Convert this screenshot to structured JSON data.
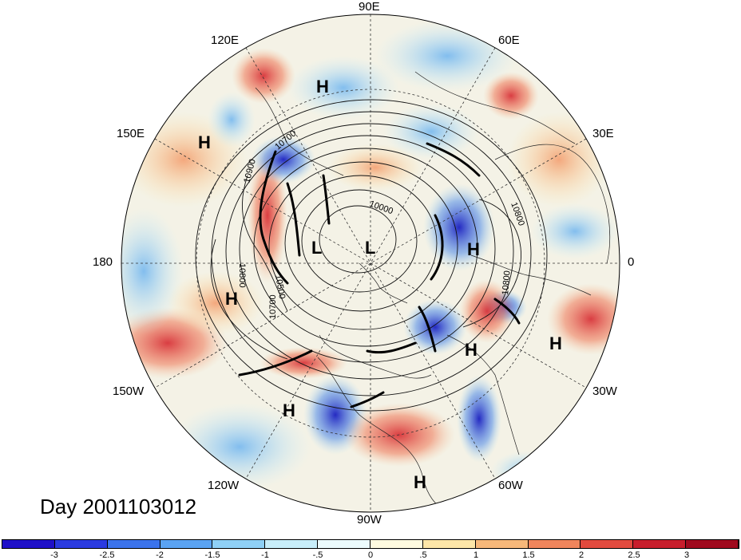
{
  "map": {
    "projection": "north-polar-stereographic",
    "longitude_labels": [
      "90E",
      "60E",
      "30E",
      "0",
      "30W",
      "60W",
      "90W",
      "120W",
      "150W",
      "180",
      "150E",
      "120E"
    ],
    "pressure_labels": [
      "H",
      "H",
      "H",
      "H",
      "H",
      "H",
      "H",
      "H",
      "L",
      "L"
    ],
    "contour_labels": [
      "10700",
      "10900",
      "10800",
      "10500",
      "10700",
      "10000",
      "10800",
      "10800"
    ],
    "day_label": "Day 2001103012"
  },
  "colorbar": {
    "tick_labels": [
      "-3",
      "-2.5",
      "-2",
      "-1.5",
      "-1",
      "-.5",
      "0",
      ".5",
      "1",
      "1.5",
      "2",
      "2.5",
      "3"
    ],
    "colors": [
      "#1f10c8",
      "#2a3ae0",
      "#3b73ec",
      "#5aa3f2",
      "#8fd0f6",
      "#c8eefa",
      "#ecfbfd",
      "#fffbe0",
      "#fde6a8",
      "#f7b87a",
      "#f0855c",
      "#e24a3e",
      "#c81e2c",
      "#a00a1e"
    ]
  }
}
